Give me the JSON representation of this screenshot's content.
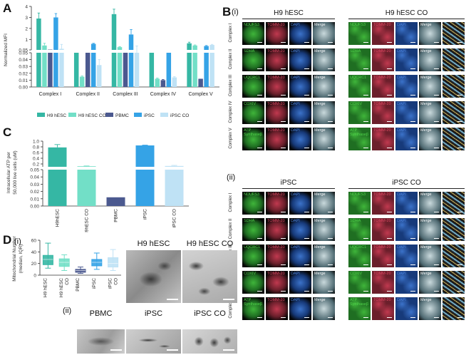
{
  "panels": {
    "A": "A",
    "B": "B",
    "C": "C",
    "D": "D",
    "Bi": "(i)",
    "Bii": "(ii)",
    "Di": "(i)",
    "Dii": "(ii)"
  },
  "colors": {
    "H9 hESC": "#35b7a4",
    "H9 hESC CO": "#72dfc7",
    "PBMC": "#4b598f",
    "iPSC": "#35a3e6",
    "iPSC CO": "#bfe2f5"
  },
  "legend": [
    "H9 hESC",
    "H9 hESC CO",
    "PBMC",
    "iPSC",
    "iPSC CO"
  ],
  "chart_data": [
    {
      "type": "bar",
      "panel": "A",
      "ylabel": "Normalized MFI",
      "categories": [
        "Complex I",
        "Complex II",
        "Complex III",
        "Complex IV",
        "Complex V"
      ],
      "yaxis": {
        "broken": true,
        "upper_ticks": [
          "0.05",
          "1",
          "2",
          "3",
          "4"
        ],
        "lower_ticks": [
          "0.00",
          "0.01",
          "0.02",
          "0.03",
          "0.04",
          "0.05"
        ]
      },
      "series": [
        {
          "name": "H9 hESC",
          "values": [
            2.9,
            0.05,
            3.3,
            0.05,
            0.65
          ],
          "err": [
            0.5,
            0,
            0.45,
            0,
            0.1
          ]
        },
        {
          "name": "H9 hESC CO",
          "values": [
            0.45,
            0.015,
            0.3,
            0.012,
            0.45
          ],
          "err": [
            0.2,
            0.001,
            0.05,
            0.001,
            0.05
          ]
        },
        {
          "name": "PBMC",
          "values": [
            0.08,
            0.05,
            0.05,
            0.01,
            0.012
          ],
          "err": [
            0,
            0,
            0,
            0.001,
            0
          ]
        },
        {
          "name": "iPSC",
          "values": [
            3.0,
            0.6,
            1.45,
            0.05,
            0.4
          ],
          "err": [
            0.35,
            0.05,
            0.45,
            0,
            0.05
          ]
        },
        {
          "name": "iPSC CO",
          "values": [
            0.15,
            0.032,
            0.05,
            0.014,
            0.5
          ],
          "err": [
            0.4,
            0.008,
            0.01,
            0.001,
            0.05
          ]
        }
      ]
    },
    {
      "type": "bar",
      "panel": "C",
      "ylabel": "Intracellular ATP per\n50,000 live cells (uM)",
      "categories": [
        "H9hESC",
        "H9hESC CO",
        "PBMC",
        "iPSC",
        "iPSC CO"
      ],
      "yaxis": {
        "broken": true,
        "upper_ticks": [
          "0.2",
          "0.4",
          "0.6",
          "0.8",
          "1.0"
        ],
        "lower_ticks": [
          "0.00",
          "0.01",
          "0.02",
          "0.03",
          "0.04",
          "0.05"
        ]
      },
      "values": [
        0.78,
        0.12,
        0.012,
        0.85,
        0.13
      ],
      "err": [
        0.1,
        0.01,
        0.001,
        0.01,
        0.02
      ]
    },
    {
      "type": "box",
      "panel": "D(i)",
      "ylabel": "Mitochondrial Number\n(median, IQR)",
      "categories": [
        "H9 hESC",
        "H9 hESC\nCO",
        "PBMC",
        "iPSC",
        "iPSC\nCO"
      ],
      "yticks": [
        "0",
        "20",
        "40",
        "60"
      ],
      "ylim": [
        0,
        60
      ],
      "boxes": [
        {
          "min": 12,
          "q1": 18,
          "median": 27,
          "q3": 34,
          "max": 55
        },
        {
          "min": 8,
          "q1": 15,
          "median": 22,
          "q3": 28,
          "max": 35
        },
        {
          "min": 3,
          "q1": 5,
          "median": 8,
          "q3": 10,
          "max": 14
        },
        {
          "min": 10,
          "q1": 16,
          "median": 22,
          "q3": 27,
          "max": 38
        },
        {
          "min": 8,
          "q1": 14,
          "median": 20,
          "q3": 30,
          "max": 44
        }
      ]
    }
  ],
  "figureB": {
    "i": {
      "left_header": "H9 hESC",
      "right_header": "H9 hESC CO",
      "rows": [
        "Complex I",
        "Complex II",
        "Complex III",
        "Complex IV",
        "Complex V"
      ]
    },
    "ii": {
      "left_header": "iPSC",
      "right_header": "iPSC CO",
      "rows": [
        "Complex I",
        "Complex II",
        "Complex III",
        "Complex IV",
        "Complex V"
      ]
    },
    "markers": [
      "NDUFS3",
      "SDHA",
      "UQCRC1",
      "COXIV",
      "ATP\nSynthaseβ"
    ],
    "channel2": "TOMM-20",
    "channel3": "DAPI",
    "channel4": "Merge"
  },
  "em": {
    "titles": [
      "H9 hESC",
      "H9 hESC CO",
      "PBMC",
      "iPSC",
      "iPSC CO"
    ]
  }
}
